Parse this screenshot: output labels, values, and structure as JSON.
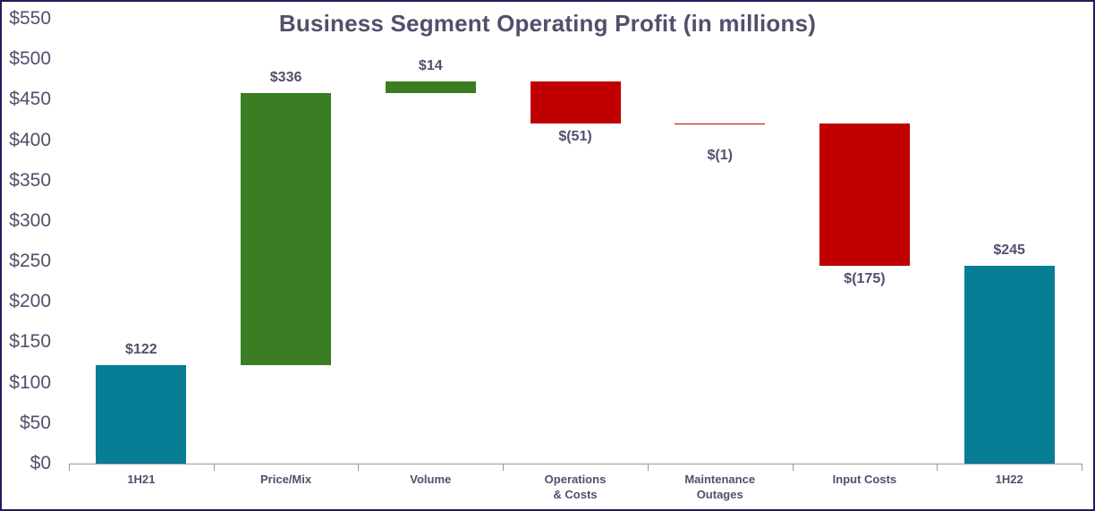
{
  "frame": {
    "background": "#FFFFFF",
    "border_color": "#201D5B"
  },
  "chart_data": {
    "type": "bar",
    "subtype": "waterfall",
    "title": "Business Segment Operating Profit (in millions)",
    "categories": [
      "1H21",
      "Price/Mix",
      "Volume",
      "Operations & Costs",
      "Maintenance Outages",
      "Input Costs",
      "1H22"
    ],
    "category_label_lines": [
      [
        "1H21"
      ],
      [
        "Price/Mix"
      ],
      [
        "Volume"
      ],
      [
        "Operations",
        "& Costs"
      ],
      [
        "Maintenance",
        "Outages"
      ],
      [
        "Input Costs"
      ],
      [
        "1H22"
      ]
    ],
    "values": [
      122,
      336,
      14,
      -51,
      -1,
      -175,
      245
    ],
    "roles": [
      "total",
      "increase",
      "increase",
      "decrease",
      "decrease",
      "decrease",
      "total"
    ],
    "segment_start": [
      0,
      122,
      458,
      472,
      421,
      420,
      0
    ],
    "segment_end": [
      122,
      458,
      472,
      421,
      420,
      245,
      245
    ],
    "data_labels": [
      "$122",
      "$336",
      "$14",
      "$(51)",
      "$(1)",
      "$(175)",
      "$245"
    ],
    "y_axis": {
      "min": 0,
      "max": 550,
      "step": 50,
      "tick_labels": [
        "$550",
        "$500",
        "$450",
        "$400",
        "$350",
        "$300",
        "$250",
        "$200",
        "$150",
        "$100",
        "$50",
        "$0"
      ]
    },
    "ylim": [
      0,
      550
    ],
    "grid": false,
    "legend": false,
    "colors": {
      "total": "#077D96",
      "increase": "#3A7D22",
      "decrease": "#C00000",
      "label_text": "#544E6C",
      "axis_line": "#999999"
    }
  }
}
